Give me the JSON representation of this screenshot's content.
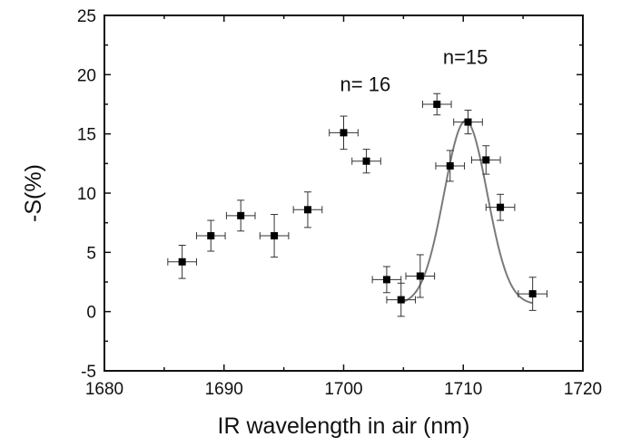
{
  "chart_data": {
    "type": "scatter",
    "xlabel": "IR wavelength in air (nm)",
    "ylabel": "-S(%)",
    "xlim": [
      1680,
      1720
    ],
    "ylim": [
      -5,
      25
    ],
    "xticks": [
      1680,
      1690,
      1700,
      1710,
      1720
    ],
    "yticks": [
      -5,
      0,
      5,
      10,
      15,
      20,
      25
    ],
    "grid": false,
    "annotations": [
      {
        "text": "n= 16",
        "x": 1699.7,
        "y": 18.6
      },
      {
        "text": "n=15",
        "x": 1708.3,
        "y": 20.9
      }
    ],
    "series": [
      {
        "type": "scatter",
        "color": "#000000",
        "points": [
          {
            "x": 1686.5,
            "y": 4.2,
            "xerr": 1.2,
            "yerr": 1.4
          },
          {
            "x": 1688.9,
            "y": 6.4,
            "xerr": 1.2,
            "yerr": 1.3
          },
          {
            "x": 1691.4,
            "y": 8.1,
            "xerr": 1.2,
            "yerr": 1.3
          },
          {
            "x": 1694.2,
            "y": 6.4,
            "xerr": 1.2,
            "yerr": 1.8
          },
          {
            "x": 1697.0,
            "y": 8.6,
            "xerr": 1.2,
            "yerr": 1.5
          },
          {
            "x": 1700.0,
            "y": 15.1,
            "xerr": 1.2,
            "yerr": 1.4
          },
          {
            "x": 1701.9,
            "y": 12.7,
            "xerr": 1.2,
            "yerr": 1.0
          },
          {
            "x": 1703.6,
            "y": 2.7,
            "xerr": 1.2,
            "yerr": 1.1
          },
          {
            "x": 1704.8,
            "y": 1.0,
            "xerr": 1.2,
            "yerr": 1.4
          },
          {
            "x": 1706.4,
            "y": 3.0,
            "xerr": 1.2,
            "yerr": 1.8
          },
          {
            "x": 1707.8,
            "y": 17.5,
            "xerr": 1.2,
            "yerr": 0.9
          },
          {
            "x": 1708.9,
            "y": 12.3,
            "xerr": 1.2,
            "yerr": 1.3
          },
          {
            "x": 1710.4,
            "y": 16.0,
            "xerr": 1.2,
            "yerr": 1.0
          },
          {
            "x": 1711.9,
            "y": 12.8,
            "xerr": 1.2,
            "yerr": 1.2
          },
          {
            "x": 1713.1,
            "y": 8.8,
            "xerr": 1.2,
            "yerr": 1.1
          },
          {
            "x": 1715.8,
            "y": 1.5,
            "xerr": 1.2,
            "yerr": 1.4
          }
        ]
      },
      {
        "type": "line",
        "color": "#7a7a7a",
        "fit": "gaussian",
        "x_range": [
          1704.8,
          1715.8
        ],
        "baseline": 0.6,
        "amplitude": 15.5,
        "center": 1710.2,
        "sigma": 1.8
      }
    ]
  }
}
